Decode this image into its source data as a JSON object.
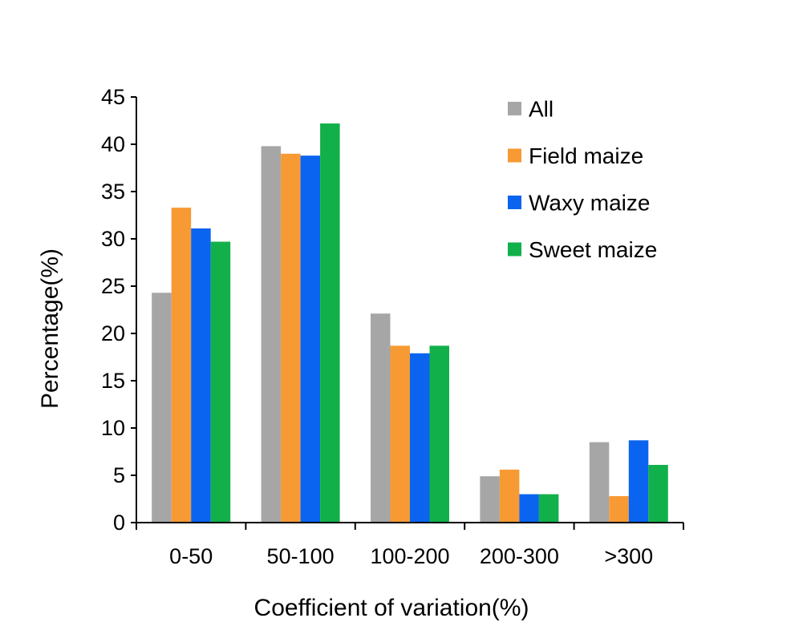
{
  "chart_data": {
    "type": "bar",
    "title": "",
    "xlabel": "Coefficient of variation(%)",
    "ylabel": "Percentage(%)",
    "ylim": [
      0,
      45
    ],
    "yticks": [
      0,
      5,
      10,
      15,
      20,
      25,
      30,
      35,
      40,
      45
    ],
    "categories": [
      "0-50",
      "50-100",
      "100-200",
      "200-300",
      ">300"
    ],
    "series": [
      {
        "name": "All",
        "color": "#a6a6a6",
        "values": [
          24.3,
          39.8,
          22.1,
          4.9,
          8.5
        ]
      },
      {
        "name": "Field maize",
        "color": "#f79a34",
        "values": [
          33.3,
          39.0,
          18.7,
          5.6,
          2.8
        ]
      },
      {
        "name": "Waxy maize",
        "color": "#0a64f0",
        "values": [
          31.1,
          38.8,
          17.9,
          3.0,
          8.7
        ]
      },
      {
        "name": "Sweet maize",
        "color": "#12b04a",
        "values": [
          29.7,
          42.2,
          18.7,
          3.0,
          6.1
        ]
      }
    ],
    "grid": false,
    "legend_position": "top-right"
  }
}
